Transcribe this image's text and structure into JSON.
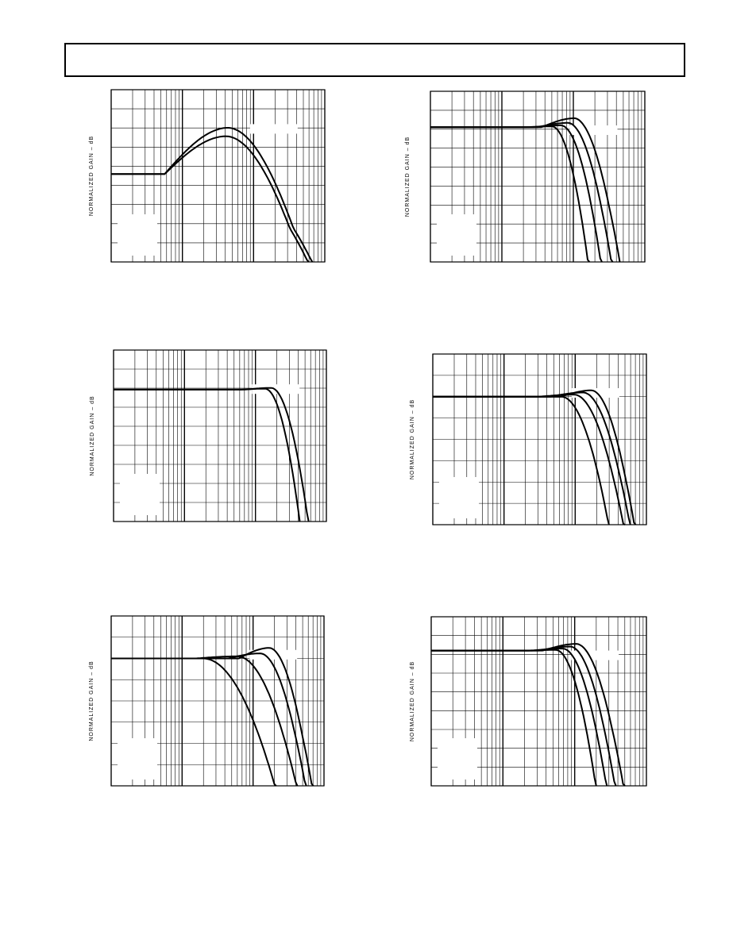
{
  "charts": [
    {
      "y_label": "NORMALIZED GAIN – dB"
    },
    {
      "y_label": "NORMALIZED GAIN – dB"
    },
    {
      "y_label": "NORMALIZED GAIN – dB"
    },
    {
      "y_label": "NORMALIZED GAIN – dB"
    },
    {
      "y_label": "NORMALIZED GAIN – dB"
    },
    {
      "y_label": "NORMALIZED GAIN – dB"
    }
  ]
}
